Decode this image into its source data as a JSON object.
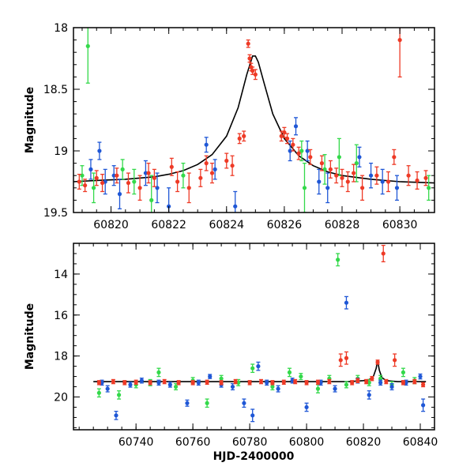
{
  "colors": {
    "blue": "#1f57d6",
    "green": "#33d94a",
    "red": "#ee3a26",
    "model": "#000000",
    "frame": "#000000"
  },
  "chart_data": [
    {
      "type": "scatter",
      "title": "",
      "xlabel": "",
      "ylabel": "Magnitude",
      "xlim": [
        60818.7,
        60831.2
      ],
      "ylim": [
        19.5,
        18.0
      ],
      "y_inverted": true,
      "x_ticks": [
        60820,
        60822,
        60824,
        60826,
        60828,
        60830
      ],
      "y_ticks": [
        18,
        18.5,
        19,
        19.5
      ],
      "legend": "none",
      "model_curve": {
        "description_visible": "black line",
        "points": [
          [
            60818.7,
            19.25
          ],
          [
            60819.5,
            19.24
          ],
          [
            60820.5,
            19.23
          ],
          [
            60821.5,
            19.21
          ],
          [
            60822.0,
            19.19
          ],
          [
            60822.5,
            19.16
          ],
          [
            60823.0,
            19.11
          ],
          [
            60823.5,
            19.03
          ],
          [
            60824.0,
            18.88
          ],
          [
            60824.4,
            18.65
          ],
          [
            60824.7,
            18.38
          ],
          [
            60824.9,
            18.23
          ],
          [
            60825.0,
            18.23
          ],
          [
            60825.1,
            18.28
          ],
          [
            60825.3,
            18.45
          ],
          [
            60825.6,
            18.7
          ],
          [
            60826.0,
            18.9
          ],
          [
            60826.5,
            19.04
          ],
          [
            60827.0,
            19.12
          ],
          [
            60827.5,
            19.17
          ],
          [
            60828.0,
            19.2
          ],
          [
            60829.0,
            19.23
          ],
          [
            60830.0,
            19.25
          ],
          [
            60831.2,
            19.26
          ]
        ]
      },
      "series": [
        {
          "color": "red",
          "points": [
            [
              60818.9,
              19.25,
              0.06
            ],
            [
              60819.1,
              19.28,
              0.05
            ],
            [
              60819.5,
              19.22,
              0.06
            ],
            [
              60819.7,
              19.26,
              0.07
            ],
            [
              60820.2,
              19.2,
              0.06
            ],
            [
              60820.6,
              19.26,
              0.08
            ],
            [
              60821.0,
              19.3,
              0.1
            ],
            [
              60821.3,
              19.18,
              0.08
            ],
            [
              60821.5,
              19.22,
              0.07
            ],
            [
              60822.1,
              19.13,
              0.07
            ],
            [
              60822.3,
              19.25,
              0.08
            ],
            [
              60822.7,
              19.3,
              0.12
            ],
            [
              60823.1,
              19.22,
              0.07
            ],
            [
              60823.3,
              19.1,
              0.06
            ],
            [
              60823.5,
              19.18,
              0.08
            ],
            [
              60824.0,
              19.08,
              0.06
            ],
            [
              60824.2,
              19.12,
              0.08
            ],
            [
              60824.45,
              18.9,
              0.04
            ],
            [
              60824.6,
              18.88,
              0.04
            ],
            [
              60824.75,
              18.13,
              0.03
            ],
            [
              60824.8,
              18.25,
              0.03
            ],
            [
              60824.85,
              18.32,
              0.03
            ],
            [
              60824.9,
              18.35,
              0.03
            ],
            [
              60825.0,
              18.38,
              0.04
            ],
            [
              60825.9,
              18.88,
              0.04
            ],
            [
              60826.0,
              18.85,
              0.04
            ],
            [
              60826.1,
              18.9,
              0.04
            ],
            [
              60826.3,
              18.95,
              0.05
            ],
            [
              60826.5,
              19.02,
              0.05
            ],
            [
              60826.9,
              19.05,
              0.06
            ],
            [
              60827.3,
              19.1,
              0.06
            ],
            [
              60827.6,
              19.15,
              0.07
            ],
            [
              60827.8,
              19.2,
              0.06
            ],
            [
              60828.0,
              19.22,
              0.07
            ],
            [
              60828.2,
              19.25,
              0.08
            ],
            [
              60828.4,
              19.18,
              0.07
            ],
            [
              60828.7,
              19.3,
              0.1
            ],
            [
              60829.2,
              19.2,
              0.07
            ],
            [
              60829.6,
              19.25,
              0.08
            ],
            [
              60829.8,
              19.05,
              0.06
            ],
            [
              60830.0,
              18.1,
              0.3
            ],
            [
              60830.3,
              19.2,
              0.08
            ],
            [
              60830.6,
              19.24,
              0.07
            ],
            [
              60830.9,
              19.22,
              0.06
            ]
          ]
        },
        {
          "color": "blue",
          "points": [
            [
              60819.3,
              19.15,
              0.08
            ],
            [
              60819.6,
              19.0,
              0.07
            ],
            [
              60819.8,
              19.25,
              0.1
            ],
            [
              60820.1,
              19.2,
              0.08
            ],
            [
              60820.3,
              19.35,
              0.12
            ],
            [
              60821.2,
              19.18,
              0.1
            ],
            [
              60821.6,
              19.3,
              0.12
            ],
            [
              60822.0,
              19.45,
              0.15
            ],
            [
              60823.3,
              18.95,
              0.06
            ],
            [
              60823.6,
              19.15,
              0.08
            ],
            [
              60824.3,
              19.45,
              0.12
            ],
            [
              60826.2,
              19.0,
              0.08
            ],
            [
              60826.4,
              18.8,
              0.07
            ],
            [
              60826.8,
              19.0,
              0.08
            ],
            [
              60827.2,
              19.25,
              0.1
            ],
            [
              60827.5,
              19.3,
              0.12
            ],
            [
              60828.6,
              19.05,
              0.08
            ],
            [
              60829.0,
              19.2,
              0.1
            ],
            [
              60829.4,
              19.25,
              0.1
            ],
            [
              60829.9,
              19.3,
              0.1
            ]
          ]
        },
        {
          "color": "green",
          "points": [
            [
              60819.0,
              19.2,
              0.08
            ],
            [
              60819.2,
              18.15,
              0.3
            ],
            [
              60819.4,
              19.3,
              0.12
            ],
            [
              60820.4,
              19.15,
              0.08
            ],
            [
              60820.8,
              19.25,
              0.1
            ],
            [
              60821.4,
              19.4,
              0.2
            ],
            [
              60822.5,
              19.2,
              0.1
            ],
            [
              60826.6,
              19.0,
              0.08
            ],
            [
              60826.7,
              19.3,
              0.2
            ],
            [
              60827.4,
              19.15,
              0.12
            ],
            [
              60827.9,
              19.05,
              0.15
            ],
            [
              60828.5,
              19.1,
              0.15
            ],
            [
              60831.0,
              19.3,
              0.1
            ]
          ]
        }
      ]
    },
    {
      "type": "scatter",
      "title": "",
      "xlabel": "HJD-2400000",
      "ylabel": "Magnitude",
      "xlim": [
        60718,
        60845
      ],
      "ylim": [
        21.6,
        12.5
      ],
      "y_inverted": true,
      "x_ticks": [
        60740,
        60760,
        60780,
        60800,
        60820,
        60840
      ],
      "y_ticks": [
        14,
        16,
        18,
        20
      ],
      "legend": "none",
      "model_curve": {
        "description_visible": "black line",
        "points": [
          [
            60725,
            19.25
          ],
          [
            60815,
            19.25
          ],
          [
            60820,
            19.2
          ],
          [
            60822,
            19.15
          ],
          [
            60823.5,
            19.0
          ],
          [
            60824.5,
            18.6
          ],
          [
            60825,
            18.22
          ],
          [
            60825.6,
            18.7
          ],
          [
            60826.5,
            19.05
          ],
          [
            60828,
            19.2
          ],
          [
            60832,
            19.25
          ],
          [
            60842,
            19.25
          ]
        ]
      },
      "series": [
        {
          "color": "red",
          "points": [
            [
              60727,
              19.3,
              0.1
            ],
            [
              60732,
              19.25,
              0.1
            ],
            [
              60736,
              19.3,
              0.1
            ],
            [
              60740,
              19.28,
              0.1
            ],
            [
              60745,
              19.3,
              0.1
            ],
            [
              60750,
              19.25,
              0.1
            ],
            [
              60755,
              19.3,
              0.1
            ],
            [
              60760,
              19.3,
              0.1
            ],
            [
              60765,
              19.28,
              0.1
            ],
            [
              60770,
              19.3,
              0.1
            ],
            [
              60775,
              19.25,
              0.1
            ],
            [
              60780,
              19.3,
              0.1
            ],
            [
              60784,
              19.25,
              0.1
            ],
            [
              60788,
              19.3,
              0.1
            ],
            [
              60792,
              19.28,
              0.1
            ],
            [
              60796,
              19.25,
              0.1
            ],
            [
              60800,
              19.3,
              0.1
            ],
            [
              60804,
              19.28,
              0.1
            ],
            [
              60808,
              19.25,
              0.1
            ],
            [
              60812,
              18.2,
              0.3
            ],
            [
              60814,
              18.1,
              0.3
            ],
            [
              60816,
              19.3,
              0.1
            ],
            [
              60818,
              19.2,
              0.1
            ],
            [
              60821,
              19.25,
              0.1
            ],
            [
              60823,
              19.1,
              0.1
            ],
            [
              60825,
              18.3,
              0.1
            ],
            [
              60827,
              13.0,
              0.4
            ],
            [
              60828,
              19.25,
              0.1
            ],
            [
              60831,
              18.2,
              0.3
            ],
            [
              60834,
              19.3,
              0.1
            ],
            [
              60838,
              19.25,
              0.1
            ],
            [
              60841,
              19.4,
              0.1
            ]
          ]
        },
        {
          "color": "blue",
          "points": [
            [
              60728,
              19.3,
              0.12
            ],
            [
              60730,
              19.6,
              0.15
            ],
            [
              60733,
              20.9,
              0.2
            ],
            [
              60738,
              19.4,
              0.12
            ],
            [
              60742,
              19.2,
              0.12
            ],
            [
              60748,
              19.3,
              0.12
            ],
            [
              60752,
              19.4,
              0.12
            ],
            [
              60758,
              20.3,
              0.15
            ],
            [
              60762,
              19.3,
              0.12
            ],
            [
              60766,
              19.0,
              0.1
            ],
            [
              60770,
              19.4,
              0.12
            ],
            [
              60774,
              19.5,
              0.15
            ],
            [
              60778,
              20.3,
              0.2
            ],
            [
              60781,
              20.9,
              0.3
            ],
            [
              60783,
              18.5,
              0.2
            ],
            [
              60786,
              19.3,
              0.12
            ],
            [
              60790,
              19.6,
              0.15
            ],
            [
              60795,
              19.2,
              0.12
            ],
            [
              60800,
              20.5,
              0.2
            ],
            [
              60805,
              19.3,
              0.12
            ],
            [
              60810,
              19.6,
              0.15
            ],
            [
              60814,
              15.4,
              0.3
            ],
            [
              60818,
              19.2,
              0.12
            ],
            [
              60822,
              19.9,
              0.2
            ],
            [
              60826,
              19.3,
              0.12
            ],
            [
              60830,
              19.5,
              0.15
            ],
            [
              60835,
              19.3,
              0.12
            ],
            [
              60840,
              19.0,
              0.12
            ],
            [
              60841,
              20.4,
              0.3
            ]
          ]
        },
        {
          "color": "green",
          "points": [
            [
              60727,
              19.8,
              0.2
            ],
            [
              60734,
              19.9,
              0.2
            ],
            [
              60740,
              19.4,
              0.15
            ],
            [
              60745,
              19.3,
              0.15
            ],
            [
              60748,
              18.8,
              0.2
            ],
            [
              60754,
              19.5,
              0.15
            ],
            [
              60760,
              19.2,
              0.15
            ],
            [
              60765,
              20.3,
              0.2
            ],
            [
              60770,
              19.1,
              0.15
            ],
            [
              60776,
              19.3,
              0.15
            ],
            [
              60781,
              18.6,
              0.2
            ],
            [
              60788,
              19.5,
              0.15
            ],
            [
              60794,
              18.8,
              0.2
            ],
            [
              60798,
              19.0,
              0.15
            ],
            [
              60804,
              19.6,
              0.2
            ],
            [
              60808,
              19.1,
              0.15
            ],
            [
              60811,
              13.3,
              0.3
            ],
            [
              60814,
              19.4,
              0.15
            ],
            [
              60818,
              19.1,
              0.15
            ],
            [
              60822,
              19.3,
              0.15
            ],
            [
              60826,
              19.1,
              0.15
            ],
            [
              60830,
              19.4,
              0.15
            ],
            [
              60834,
              18.8,
              0.2
            ],
            [
              60838,
              19.2,
              0.15
            ]
          ]
        }
      ]
    }
  ]
}
